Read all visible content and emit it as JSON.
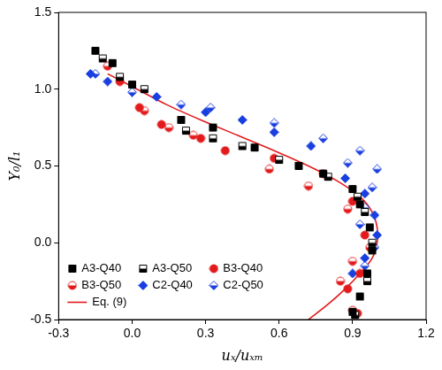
{
  "chart_data": {
    "type": "scatter",
    "x_label": "uₓ/uₓₘ",
    "y_label": "Y₀/l₁",
    "xlim": [
      -0.3,
      1.2
    ],
    "xticks": [
      -0.3,
      {
        "value": 0,
        "label": "0.0"
      },
      0.3,
      0.6,
      0.9,
      1.2
    ],
    "ylim": [
      -0.5,
      1.5
    ],
    "yticks": [
      -0.5,
      {
        "value": 0,
        "label": "0.0"
      },
      0.5,
      {
        "value": 1,
        "label": "1.0"
      },
      1.5
    ],
    "grid": false,
    "legend": "lower left",
    "series": [
      {
        "name": "A3-Q40",
        "color": "#000000",
        "marker": "square",
        "x": [
          -0.15,
          -0.08,
          0.0,
          0.2,
          0.33,
          0.5,
          0.68,
          0.78,
          0.9,
          0.93,
          0.97,
          0.98,
          0.96,
          0.93,
          0.9
        ],
        "y": [
          1.25,
          1.17,
          1.03,
          0.8,
          0.75,
          0.62,
          0.5,
          0.45,
          0.35,
          0.25,
          0.1,
          -0.05,
          -0.2,
          -0.35,
          -0.45
        ]
      },
      {
        "name": "A3-Q50",
        "color": "#000000",
        "marker": "square_half",
        "x": [
          -0.12,
          -0.05,
          0.05,
          0.22,
          0.33,
          0.45,
          0.6,
          0.8,
          0.92,
          0.95,
          0.98,
          0.96,
          0.91
        ],
        "y": [
          1.2,
          1.08,
          1.0,
          0.73,
          0.68,
          0.63,
          0.54,
          0.43,
          0.3,
          0.2,
          0.0,
          -0.25,
          -0.47
        ]
      },
      {
        "name": "B3-Q40",
        "color": "#e31a1c",
        "marker": "circle",
        "x": [
          -0.05,
          0.03,
          0.12,
          0.28,
          0.38,
          0.58,
          0.78,
          0.9,
          0.95,
          0.93,
          0.88,
          0.92
        ],
        "y": [
          1.05,
          0.88,
          0.77,
          0.68,
          0.6,
          0.55,
          0.45,
          0.27,
          0.05,
          -0.2,
          -0.3,
          -0.46
        ]
      },
      {
        "name": "B3-Q50",
        "color": "#e31a1c",
        "marker": "circle_half",
        "x": [
          -0.1,
          0.05,
          0.15,
          0.25,
          0.56,
          0.72,
          0.88,
          0.97,
          0.9,
          0.85,
          0.9
        ],
        "y": [
          1.15,
          0.86,
          0.75,
          0.7,
          0.48,
          0.37,
          0.22,
          -0.03,
          -0.12,
          -0.25,
          -0.44
        ]
      },
      {
        "name": "C2-Q40",
        "color": "#1a3fe0",
        "marker": "diamond",
        "x": [
          -0.17,
          -0.1,
          0.1,
          0.3,
          0.45,
          0.58,
          0.73,
          0.87,
          0.95,
          0.99,
          1.0,
          0.95,
          0.9
        ],
        "y": [
          1.1,
          1.05,
          0.95,
          0.85,
          0.8,
          0.72,
          0.63,
          0.42,
          0.32,
          0.18,
          0.05,
          -0.1,
          -0.2
        ]
      },
      {
        "name": "C2-Q50",
        "color": "#1a3fe0",
        "marker": "diamond_half",
        "x": [
          -0.15,
          0.0,
          0.2,
          0.32,
          0.58,
          0.78,
          0.88,
          0.93,
          1.0,
          0.98,
          0.95,
          0.93,
          0.99,
          0.95
        ],
        "y": [
          1.1,
          0.98,
          0.9,
          0.88,
          0.78,
          0.68,
          0.52,
          0.6,
          0.48,
          0.36,
          0.23,
          0.12,
          -0.03,
          -0.15
        ]
      },
      {
        "name": "Eq. (9)",
        "color": "#e31a1c",
        "type": "line",
        "line_style": "solid",
        "x": [
          0.72,
          0.8,
          0.87,
          0.93,
          0.98,
          1.0,
          1.0,
          0.98,
          0.93,
          0.84,
          0.72,
          0.58,
          0.43,
          0.28,
          0.14,
          0.02,
          -0.1
        ],
        "y": [
          -0.5,
          -0.4,
          -0.3,
          -0.2,
          -0.1,
          0.0,
          0.1,
          0.2,
          0.3,
          0.4,
          0.5,
          0.6,
          0.7,
          0.8,
          0.9,
          1.0,
          1.1
        ]
      }
    ]
  }
}
